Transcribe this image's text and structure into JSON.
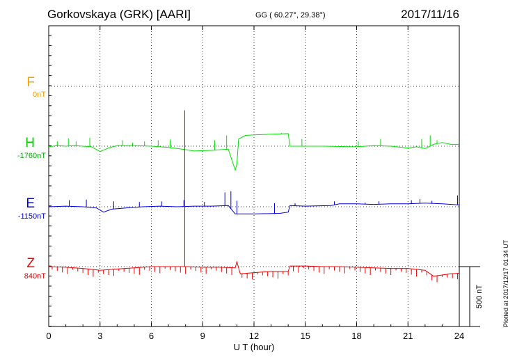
{
  "header": {
    "station": "Gorkovskaya (GRK)  [AARI]",
    "coords": "GG ( 60.27°,  29.38°)",
    "date": "2017/11/16"
  },
  "side_note": "Plotted at 2017/12/17 01:34 UT",
  "scale_label": "500 nT",
  "colors": {
    "F": "#f5a000",
    "H": "#00e000",
    "E": "#0000dd",
    "Z": "#ee0000"
  },
  "chart_data": {
    "type": "line",
    "xlabel": "U T (hour)",
    "xlim": [
      0,
      24
    ],
    "xticks": [
      "0",
      "3",
      "6",
      "9",
      "12",
      "15",
      "18",
      "21",
      "24"
    ],
    "scale_bar_nT": 500,
    "components": [
      {
        "name": "F",
        "baseline": "0nT",
        "color": "#f5a000",
        "data": []
      },
      {
        "name": "H",
        "baseline": "-1760nT",
        "color": "#00e000",
        "data": [
          [
            0,
            -5
          ],
          [
            0.5,
            5
          ],
          [
            1,
            0
          ],
          [
            1.5,
            5
          ],
          [
            2,
            0
          ],
          [
            2.5,
            -5
          ],
          [
            3,
            -45
          ],
          [
            3.5,
            -15
          ],
          [
            4,
            5
          ],
          [
            5,
            5
          ],
          [
            6,
            0
          ],
          [
            7,
            -10
          ],
          [
            7.8,
            -25
          ],
          [
            8.5,
            -40
          ],
          [
            9.5,
            -35
          ],
          [
            10.5,
            -25
          ],
          [
            10.9,
            -200
          ],
          [
            11,
            -150
          ],
          [
            11.1,
            60
          ],
          [
            11.5,
            90
          ],
          [
            12,
            95
          ],
          [
            13,
            100
          ],
          [
            14,
            105
          ],
          [
            14.1,
            0
          ],
          [
            15,
            0
          ],
          [
            16,
            0
          ],
          [
            18,
            -5
          ],
          [
            19,
            5
          ],
          [
            20,
            0
          ],
          [
            21,
            -15
          ],
          [
            21.5,
            -5
          ],
          [
            22,
            -20
          ],
          [
            22.5,
            15
          ],
          [
            23,
            30
          ],
          [
            23.5,
            15
          ],
          [
            24,
            15
          ]
        ],
        "spikes": [
          [
            0.5,
            40
          ],
          [
            1.15,
            65
          ],
          [
            1.6,
            40
          ],
          [
            2.4,
            70
          ],
          [
            4.3,
            50
          ],
          [
            4.9,
            30
          ],
          [
            5.6,
            40
          ],
          [
            6.4,
            50
          ],
          [
            7.1,
            55
          ],
          [
            9.7,
            50
          ],
          [
            10.4,
            90
          ],
          [
            13.6,
            110
          ],
          [
            14.8,
            60
          ],
          [
            18.1,
            40
          ],
          [
            19.4,
            60
          ],
          [
            21.8,
            60
          ],
          [
            22.3,
            90
          ],
          [
            22.7,
            50
          ]
        ]
      },
      {
        "name": "E",
        "baseline": "-1150nT",
        "color": "#0000dd",
        "data": [
          [
            0,
            0
          ],
          [
            1,
            5
          ],
          [
            2,
            0
          ],
          [
            2.8,
            -10
          ],
          [
            3.2,
            -45
          ],
          [
            3.7,
            -20
          ],
          [
            4.5,
            -10
          ],
          [
            5.5,
            0
          ],
          [
            6.5,
            5
          ],
          [
            7.5,
            0
          ],
          [
            8.5,
            5
          ],
          [
            9.5,
            5
          ],
          [
            10.5,
            10
          ],
          [
            10.9,
            -60
          ],
          [
            11.2,
            -60
          ],
          [
            12,
            -60
          ],
          [
            13.5,
            -55
          ],
          [
            14,
            -45
          ],
          [
            14.1,
            10
          ],
          [
            15,
            5
          ],
          [
            16.5,
            10
          ],
          [
            17,
            25
          ],
          [
            18,
            25
          ],
          [
            19,
            20
          ],
          [
            20,
            25
          ],
          [
            21,
            25
          ],
          [
            22,
            30
          ],
          [
            23,
            25
          ],
          [
            24,
            15
          ]
        ],
        "spikes": [
          [
            1.2,
            55
          ],
          [
            2.2,
            60
          ],
          [
            3.8,
            45
          ],
          [
            5.3,
            40
          ],
          [
            6.6,
            45
          ],
          [
            7.9,
            55
          ],
          [
            9.1,
            40
          ],
          [
            10.3,
            120
          ],
          [
            10.65,
            130
          ],
          [
            11,
            50
          ],
          [
            13.2,
            30
          ],
          [
            14.4,
            30
          ],
          [
            16.7,
            45
          ],
          [
            18.5,
            35
          ],
          [
            19.3,
            45
          ],
          [
            21.2,
            55
          ],
          [
            21.7,
            65
          ],
          [
            22.4,
            50
          ],
          [
            23.9,
            95
          ]
        ]
      },
      {
        "name": "Z",
        "baseline": "840nT",
        "color": "#ee0000",
        "data": [
          [
            0,
            0
          ],
          [
            1,
            -5
          ],
          [
            2,
            -15
          ],
          [
            3,
            -30
          ],
          [
            4,
            -20
          ],
          [
            5,
            -10
          ],
          [
            6,
            0
          ],
          [
            7,
            0
          ],
          [
            8,
            0
          ],
          [
            9,
            -5
          ],
          [
            10,
            -5
          ],
          [
            10.9,
            -10
          ],
          [
            11,
            40
          ],
          [
            11.2,
            -60
          ],
          [
            12,
            -50
          ],
          [
            13,
            -40
          ],
          [
            14,
            -40
          ],
          [
            14.1,
            5
          ],
          [
            15,
            5
          ],
          [
            16,
            0
          ],
          [
            17,
            0
          ],
          [
            18,
            -5
          ],
          [
            19,
            -10
          ],
          [
            20,
            -15
          ],
          [
            21,
            -15
          ],
          [
            22,
            -30
          ],
          [
            22.5,
            -80
          ],
          [
            23,
            -70
          ],
          [
            23.5,
            -60
          ],
          [
            24,
            -55
          ]
        ],
        "spikes": [
          [
            7.95,
            1305
          ]
        ]
      }
    ]
  }
}
